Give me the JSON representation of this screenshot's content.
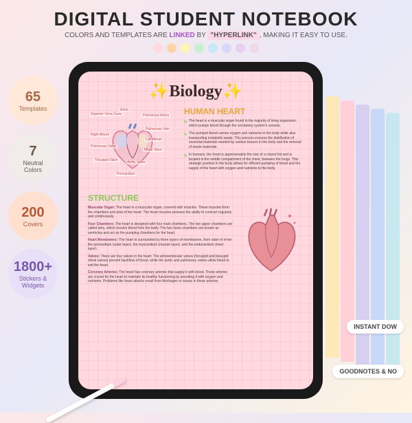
{
  "header": {
    "title": "DIGITAL STUDENT NOTEBOOK",
    "sub_pre": "COLORS AND TEMPLATES ARE ",
    "sub_linked": "LINKED",
    "sub_mid": " BY ",
    "sub_hyper": "\"HYPERLINK\"",
    "sub_post": ", MAKING IT EASY TO USE."
  },
  "palette": [
    "#ffd8e0",
    "#ffd4a8",
    "#fff4b8",
    "#c8f0d0",
    "#c8e8f8",
    "#d8d8f8",
    "#e8d0f0",
    "#f0d8e8"
  ],
  "badges": [
    {
      "num": "65",
      "label": "Templates",
      "bg": "#ffe8d8",
      "fg": "#a86848"
    },
    {
      "num": "7",
      "label": "Neutral\nColors",
      "bg": "#f0ecea",
      "fg": "#6a5a4a"
    },
    {
      "num": "200",
      "label": "Covers",
      "bg": "#ffe0d0",
      "fg": "#b85838"
    },
    {
      "num": "1800+",
      "label": "Stickers &\nWidgets",
      "bg": "#e8e0f8",
      "fg": "#7858a8"
    }
  ],
  "note": {
    "title": "✨Biology✨",
    "human_heart": {
      "heading": "HUMAN HEART",
      "color": "#e8a838",
      "dot": "#a8d888"
    },
    "bullets": [
      "The heart is a muscular organ found in the majority of living organisms, which pumps blood through the circulatory system's vessels.",
      "The pumped blood carries oxygen and nutrients to the body while also transporting metabolic waste. This process ensures the distribution of essential materials needed by various tissues in the body and the removal of waste materials.",
      "In humans, the heart is approximately the size of a closed fist and is located in the middle compartment of the chest, between the lungs. This strategic position in the body allows for efficient pumping of blood and the supply of the heart with oxygen and nutrients to the body."
    ],
    "heart_labels": [
      "Superior Vena Cava",
      "Aorta",
      "Pulmonary Artery",
      "Pulmonary Vein",
      "Right Atrium",
      "Left Atrium",
      "Pulmonary Valve",
      "Mitral Valve",
      "Tricuspid Valve",
      "Aortic Valve",
      "Pericardium"
    ],
    "structure": {
      "heading": "STRUCTURE",
      "color": "#8ac858"
    },
    "struct_items": [
      {
        "b": "Muscular Organ:",
        "t": " The heart is a muscular organ, covered with muscles. These muscles form the chambers and atria of the heart. The heart muscles possess the ability to contract regularly and continuously."
      },
      {
        "b": "Four Chambers:",
        "t": " The heart is designed with four main chambers. The two upper chambers are called atria, which receive blood from the body. The two lower chambers are known as ventricles and act as the pumping chambers for the heart."
      },
      {
        "b": "Heart Membranes:",
        "t": " The heart is surrounded by three layers of membranes, from outer to inner: the pericardium (outer layer), the myocardium (muscle layer), and the endocardium (inner layer)."
      },
      {
        "b": "Valves:",
        "t": " There are four valves in the heart. The atrioventricular valves (tricuspid and bicuspid mitral valves) prevent backflow of blood, while the aortic and pulmonary valves allow blood to exit the heart."
      },
      {
        "b": "Coronary Arteries:",
        "t": " The heart has coronary arteries that supply it with blood. These arteries are crucial for the heart to maintain its healthy functioning by providing it with oxygen and nutrients. Problems like heart attacks result from blockages or issues in these arteries."
      }
    ]
  },
  "tabs": [
    "#ffe8b8",
    "#ffd0d8",
    "#d8d0f0",
    "#c8d8f8",
    "#c8e8f0"
  ],
  "pills": {
    "p1": "INSTANT DOW",
    "p2": "GOODNOTES & NO"
  }
}
